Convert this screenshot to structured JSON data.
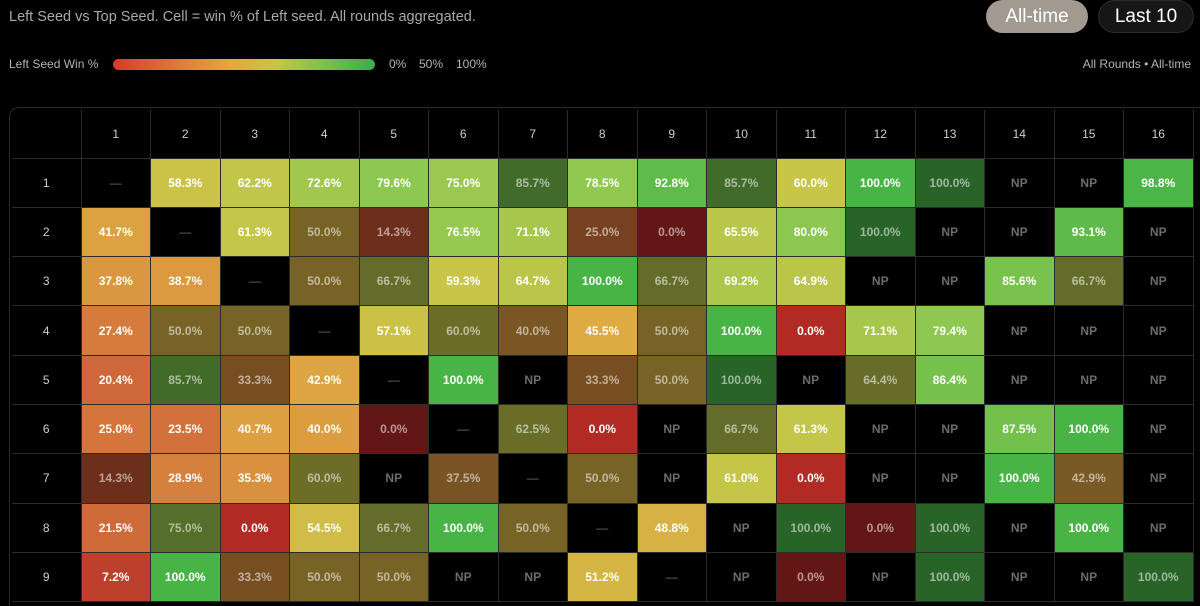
{
  "header": {
    "subtitle": "Left Seed vs Top Seed. Cell = win % of Left seed. All rounds aggregated.",
    "toggles": [
      {
        "label": "All-time",
        "active": true
      },
      {
        "label": "Last 10",
        "active": false
      }
    ]
  },
  "legend": {
    "title": "Left Seed Win %",
    "ticks": [
      "0%",
      "50%",
      "100%"
    ],
    "context": "All Rounds • All-time",
    "colors": {
      "low": "#d93a2f",
      "mid": "#e4a83a",
      "high": "#3cab4f"
    }
  },
  "matrix": {
    "columns": [
      "1",
      "2",
      "3",
      "4",
      "5",
      "6",
      "7",
      "8",
      "9",
      "10",
      "11",
      "12",
      "13",
      "14",
      "15",
      "16"
    ],
    "rows": [
      {
        "seed": "1",
        "cells": [
          "—",
          "58.3%",
          "62.2%",
          "72.6%",
          "79.6%",
          "75.0%",
          "85.7%",
          "78.5%",
          "92.8%",
          "85.7%",
          "60.0%",
          "100.0%",
          "100.0%",
          "NP",
          "NP",
          "98.8%"
        ]
      },
      {
        "seed": "2",
        "cells": [
          "41.7%",
          "—",
          "61.3%",
          "50.0%",
          "14.3%",
          "76.5%",
          "71.1%",
          "25.0%",
          "0.0%",
          "65.5%",
          "80.0%",
          "100.0%",
          "NP",
          "NP",
          "93.1%",
          "NP"
        ]
      },
      {
        "seed": "3",
        "cells": [
          "37.8%",
          "38.7%",
          "—",
          "50.0%",
          "66.7%",
          "59.3%",
          "64.7%",
          "100.0%",
          "66.7%",
          "69.2%",
          "64.9%",
          "NP",
          "NP",
          "85.6%",
          "66.7%",
          "NP"
        ]
      },
      {
        "seed": "4",
        "cells": [
          "27.4%",
          "50.0%",
          "50.0%",
          "—",
          "57.1%",
          "60.0%",
          "40.0%",
          "45.5%",
          "50.0%",
          "100.0%",
          "0.0%",
          "71.1%",
          "79.4%",
          "NP",
          "NP",
          "NP"
        ]
      },
      {
        "seed": "5",
        "cells": [
          "20.4%",
          "85.7%",
          "33.3%",
          "42.9%",
          "—",
          "100.0%",
          "NP",
          "33.3%",
          "50.0%",
          "100.0%",
          "NP",
          "64.4%",
          "86.4%",
          "NP",
          "NP",
          "NP"
        ]
      },
      {
        "seed": "6",
        "cells": [
          "25.0%",
          "23.5%",
          "40.7%",
          "40.0%",
          "0.0%",
          "—",
          "62.5%",
          "0.0%",
          "NP",
          "66.7%",
          "61.3%",
          "NP",
          "NP",
          "87.5%",
          "100.0%",
          "NP"
        ]
      },
      {
        "seed": "7",
        "cells": [
          "14.3%",
          "28.9%",
          "35.3%",
          "60.0%",
          "NP",
          "37.5%",
          "—",
          "50.0%",
          "NP",
          "61.0%",
          "0.0%",
          "NP",
          "NP",
          "100.0%",
          "42.9%",
          "NP"
        ]
      },
      {
        "seed": "8",
        "cells": [
          "21.5%",
          "75.0%",
          "0.0%",
          "54.5%",
          "66.7%",
          "100.0%",
          "50.0%",
          "—",
          "48.8%",
          "NP",
          "100.0%",
          "0.0%",
          "100.0%",
          "NP",
          "100.0%",
          "NP"
        ]
      },
      {
        "seed": "9",
        "cells": [
          "7.2%",
          "100.0%",
          "33.3%",
          "50.0%",
          "50.0%",
          "NP",
          "NP",
          "51.2%",
          "—",
          "NP",
          "0.0%",
          "NP",
          "100.0%",
          "NP",
          "NP",
          "100.0%"
        ]
      }
    ]
  }
}
